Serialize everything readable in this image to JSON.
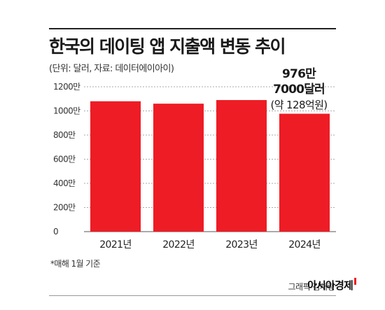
{
  "header": {
    "title": "한국의 데이팅 앱 지출액 변동 추이",
    "subtitle": "(단위: 달러, 자료: 데이터에이아이)"
  },
  "callout": {
    "line1": "976만",
    "line2": "7000달러",
    "line3": "(약 128억원)"
  },
  "footer": {
    "note": "*매해 1월 기준",
    "credit": "그래픽 김채령",
    "brand": "아시아경제"
  },
  "colors": {
    "bar": "#ee1c25",
    "grid": "#aaaaaa"
  },
  "chart_data": {
    "type": "bar",
    "title": "한국의 데이팅 앱 지출액 변동 추이",
    "subtitle": "(단위: 달러, 자료: 데이터에이아이)",
    "categories": [
      "2021년",
      "2022년",
      "2023년",
      "2024년"
    ],
    "values": [
      1080,
      1060,
      1090,
      976.7
    ],
    "unit": "만 달러",
    "ylim": [
      0,
      1200
    ],
    "yticks": [
      0,
      200,
      400,
      600,
      800,
      1000,
      1200
    ],
    "ytick_labels": [
      "0",
      "200만",
      "400만",
      "600만",
      "800만",
      "1000만",
      "1200만"
    ],
    "grid": true,
    "annotation": "976만 7000달러 (약 128억원)"
  }
}
